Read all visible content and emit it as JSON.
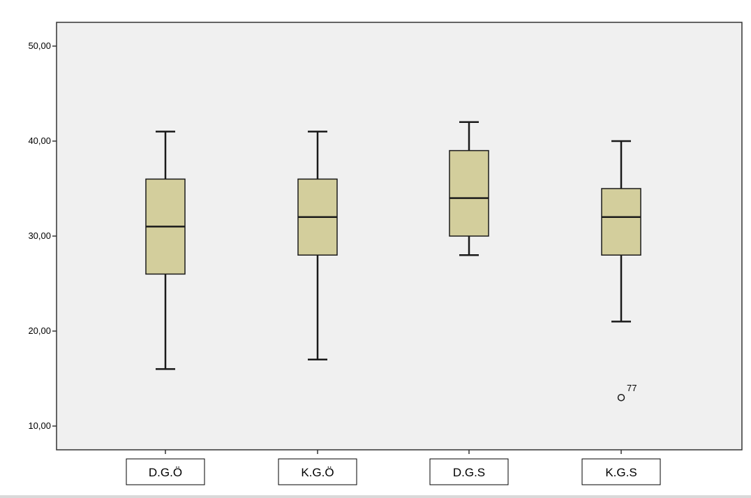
{
  "chart_data": {
    "type": "boxplot",
    "title": "",
    "xlabel": "",
    "ylabel": "",
    "ylim": [
      7.5,
      52.5
    ],
    "yticks": [
      10,
      20,
      30,
      40,
      50
    ],
    "ytick_labels": [
      "10,00",
      "20,00",
      "30,00",
      "40,00",
      "50,00"
    ],
    "categories": [
      "D.G.Ö",
      "K.G.Ö",
      "D.G.S",
      "K.G.S"
    ],
    "boxes": [
      {
        "category": "D.G.Ö",
        "whisker_low": 16,
        "q1": 26,
        "median": 31,
        "q3": 36,
        "whisker_high": 41,
        "outliers": []
      },
      {
        "category": "K.G.Ö",
        "whisker_low": 17,
        "q1": 28,
        "median": 32,
        "q3": 36,
        "whisker_high": 41,
        "outliers": []
      },
      {
        "category": "D.G.S",
        "whisker_low": 28,
        "q1": 30,
        "median": 34,
        "q3": 39,
        "whisker_high": 42,
        "outliers": []
      },
      {
        "category": "K.G.S",
        "whisker_low": 21,
        "q1": 28,
        "median": 32,
        "q3": 35,
        "whisker_high": 40,
        "outliers": [
          {
            "value": 13,
            "label": "77"
          }
        ]
      }
    ],
    "grid": false,
    "legend": "none"
  },
  "colors": {
    "plot_background": "#f0f0f0",
    "box_fill": "#d3ce9c",
    "box_stroke": "#1a1a1a",
    "axis": "#333333"
  }
}
